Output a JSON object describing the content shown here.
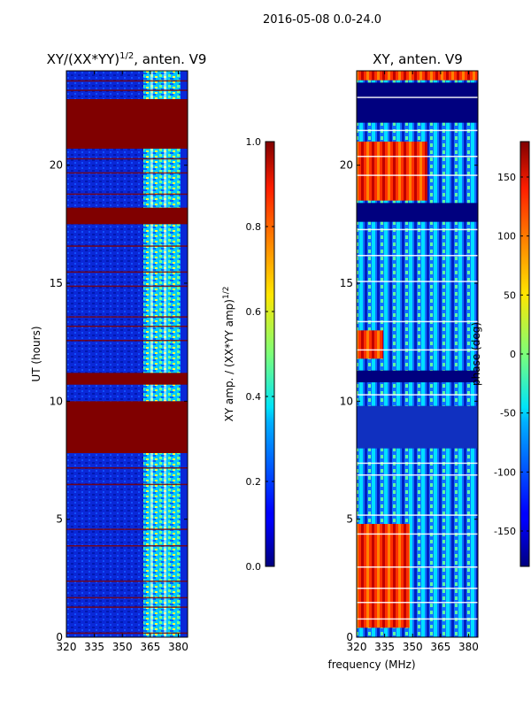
{
  "header": {
    "date_range": "2016-05-08 0.0-24.0"
  },
  "colors": {
    "hot_red": "#800000",
    "dark_blue": "#00007f",
    "accent_cyan": "#7fffff"
  },
  "chart_data": [
    {
      "type": "heatmap",
      "title": "XY/(XX*YY)",
      "title_exp": "1/2",
      "title_suffix": ", anten. V9",
      "xlabel": "",
      "ylabel": "UT (hours)",
      "xlim": [
        320,
        385
      ],
      "ylim": [
        0,
        24
      ],
      "xticks": [
        "320",
        "335",
        "350",
        "365",
        "380"
      ],
      "yticks": [
        "0",
        "5",
        "10",
        "15",
        "20"
      ],
      "colorbar": {
        "label": "XY amp. / (XX*YY amp)",
        "label_exp": "1/2",
        "range": [
          0.0,
          1.0
        ],
        "ticks": [
          "0.0",
          "0.2",
          "0.4",
          "0.6",
          "0.8",
          "1.0"
        ],
        "colormap": "jet"
      },
      "saturated_bands_hours": [
        [
          21.0,
          22.8
        ],
        [
          20.7,
          21.5
        ],
        [
          17.5,
          18.2
        ],
        [
          10.7,
          11.2
        ],
        [
          7.8,
          10.0
        ]
      ]
    },
    {
      "type": "heatmap",
      "title": "XY, anten. V9",
      "xlabel": "frequency (MHz)",
      "ylabel": "",
      "xlim": [
        320,
        385
      ],
      "ylim": [
        0,
        24
      ],
      "xticks": [
        "320",
        "335",
        "350",
        "365",
        "380"
      ],
      "yticks": [
        "0",
        "5",
        "10",
        "15",
        "20"
      ],
      "colorbar": {
        "label": "phase (deg)",
        "range": [
          -180,
          180
        ],
        "ticks": [
          "-150",
          "-100",
          "-50",
          "0",
          "50",
          "100",
          "150"
        ],
        "colormap": "jet"
      }
    }
  ]
}
